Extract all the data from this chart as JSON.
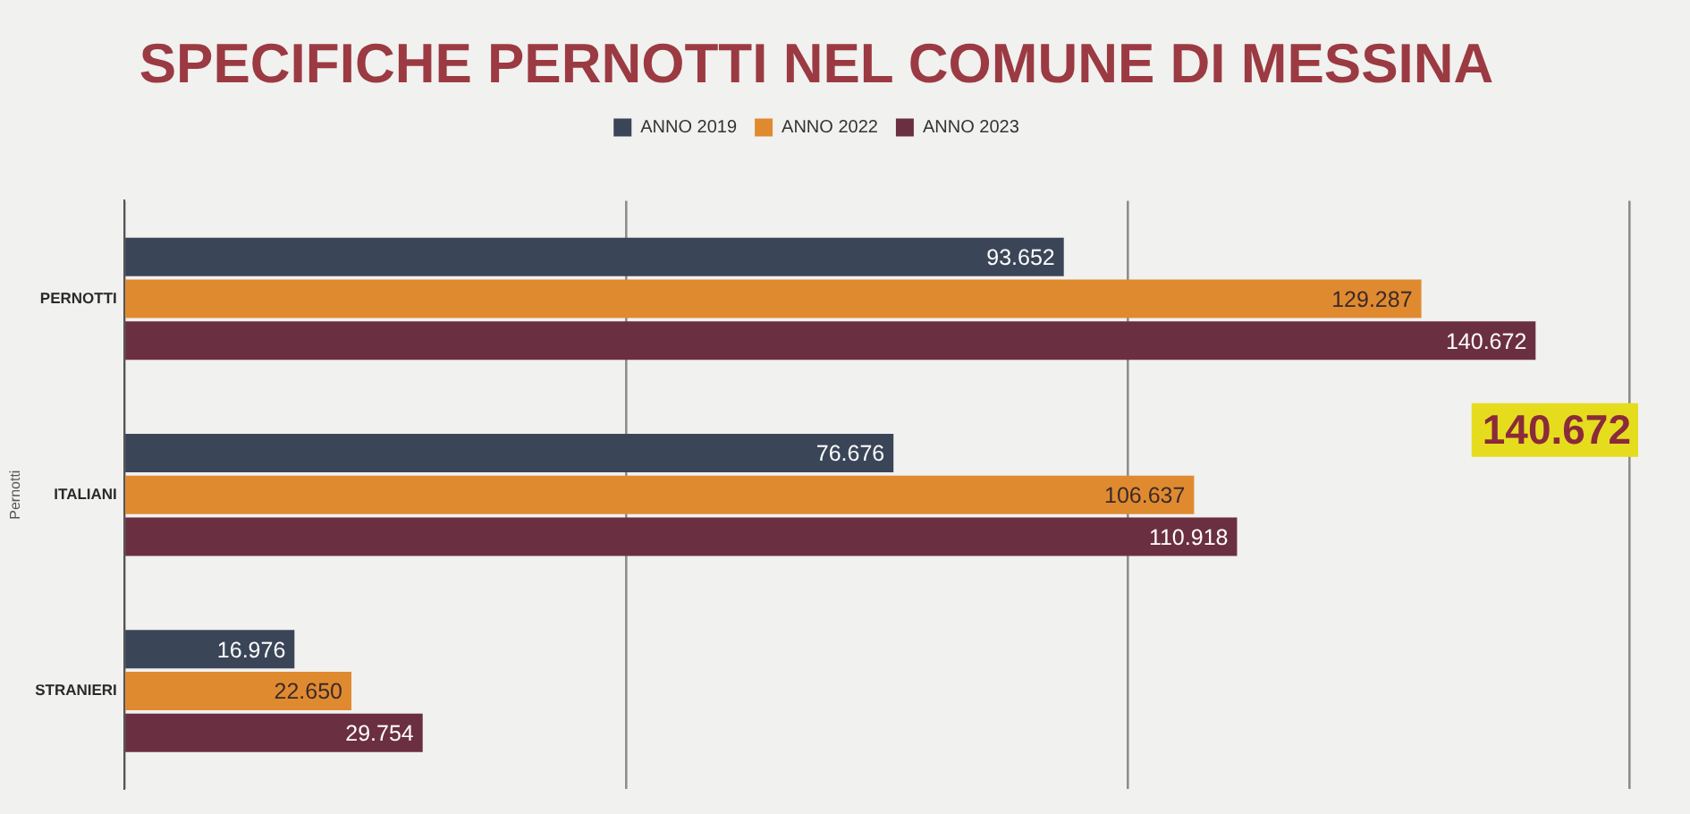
{
  "chart_data": {
    "type": "bar",
    "orientation": "horizontal",
    "title": "SPECIFICHE PERNOTTI NEL COMUNE DI MESSINA",
    "ylabel": "Pernotti",
    "categories": [
      "PERNOTTI",
      "ITALIANI",
      "STRANIERI"
    ],
    "series": [
      {
        "name": "ANNO 2019",
        "color": "#3b4558",
        "values": [
          93652,
          76676,
          16976
        ],
        "value_labels": [
          "93.652",
          "76.676",
          "16.976"
        ]
      },
      {
        "name": "ANNO 2022",
        "color": "#e08a30",
        "values": [
          129287,
          106637,
          22650
        ],
        "value_labels": [
          "129.287",
          "106.637",
          "22.650"
        ]
      },
      {
        "name": "ANNO 2023",
        "color": "#6b2f42",
        "values": [
          140672,
          110918,
          29754
        ],
        "value_labels": [
          "140.672",
          "110.918",
          "29.754"
        ]
      }
    ],
    "xlim": [
      0,
      150000
    ],
    "xticks": [
      {
        "value": 0,
        "label": null
      },
      {
        "value": 50000,
        "label": null
      },
      {
        "value": 100000,
        "label": null
      },
      {
        "value": 150000,
        "label": null
      }
    ],
    "grid": "x",
    "legend": "top",
    "tick_labels": "y",
    "annotations": [
      "140.672"
    ]
  }
}
